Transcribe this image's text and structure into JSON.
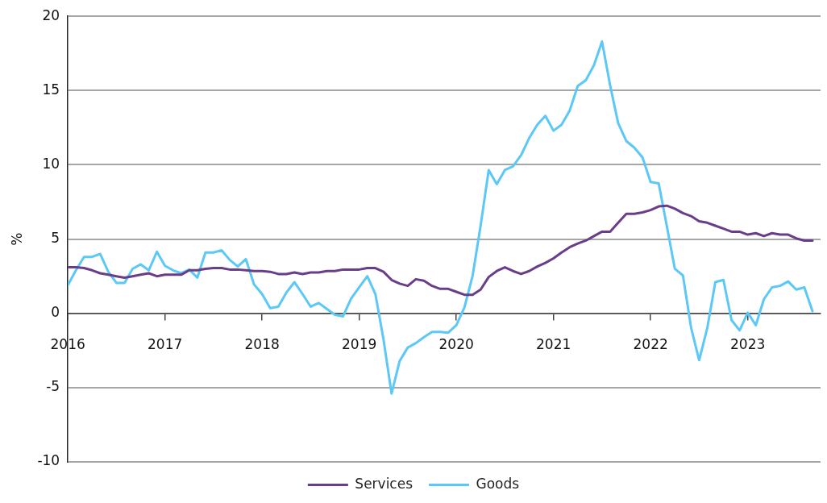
{
  "chart_data": {
    "type": "line",
    "ylabel": "%",
    "x": [
      "2016-01",
      "2016-02",
      "2016-03",
      "2016-04",
      "2016-05",
      "2016-06",
      "2016-07",
      "2016-08",
      "2016-09",
      "2016-10",
      "2016-11",
      "2016-12",
      "2017-01",
      "2017-02",
      "2017-03",
      "2017-04",
      "2017-05",
      "2017-06",
      "2017-07",
      "2017-08",
      "2017-09",
      "2017-10",
      "2017-11",
      "2017-12",
      "2018-01",
      "2018-02",
      "2018-03",
      "2018-04",
      "2018-05",
      "2018-06",
      "2018-07",
      "2018-08",
      "2018-09",
      "2018-10",
      "2018-11",
      "2018-12",
      "2019-01",
      "2019-02",
      "2019-03",
      "2019-04",
      "2019-05",
      "2019-06",
      "2019-07",
      "2019-08",
      "2019-09",
      "2019-10",
      "2019-11",
      "2019-12",
      "2020-01",
      "2020-02",
      "2020-03",
      "2020-04",
      "2020-05",
      "2020-06",
      "2020-07",
      "2020-08",
      "2020-09",
      "2020-10",
      "2020-11",
      "2020-12",
      "2021-01",
      "2021-02",
      "2021-03",
      "2021-04",
      "2021-05",
      "2021-06",
      "2021-07",
      "2021-08",
      "2021-09",
      "2021-10",
      "2021-11",
      "2021-12",
      "2022-01",
      "2022-02",
      "2022-03",
      "2022-04",
      "2022-05",
      "2022-06",
      "2022-07",
      "2022-08",
      "2022-09",
      "2022-10",
      "2022-11",
      "2022-12",
      "2023-01",
      "2023-02",
      "2023-03",
      "2023-04",
      "2023-05",
      "2023-06",
      "2023-07",
      "2023-08",
      "2023-09"
    ],
    "series": [
      {
        "name": "Services",
        "color": "#6a3d8a",
        "values": [
          3.1,
          3.1,
          3.05,
          2.9,
          2.7,
          2.6,
          2.5,
          2.4,
          2.5,
          2.6,
          2.7,
          2.5,
          2.6,
          2.6,
          2.6,
          2.9,
          2.9,
          3.0,
          3.05,
          3.05,
          2.95,
          2.95,
          2.9,
          2.85,
          2.85,
          2.8,
          2.65,
          2.65,
          2.75,
          2.65,
          2.75,
          2.75,
          2.85,
          2.85,
          2.95,
          2.95,
          2.95,
          3.05,
          3.05,
          2.8,
          2.25,
          2.0,
          1.85,
          2.3,
          2.2,
          1.85,
          1.65,
          1.65,
          1.45,
          1.25,
          1.25,
          1.6,
          2.45,
          2.85,
          3.1,
          2.85,
          2.65,
          2.85,
          3.15,
          3.4,
          3.7,
          4.1,
          4.45,
          4.7,
          4.9,
          5.2,
          5.5,
          5.5,
          6.1,
          6.7,
          6.7,
          6.8,
          6.95,
          7.2,
          7.25,
          7.05,
          6.75,
          6.55,
          6.2,
          6.1,
          5.9,
          5.7,
          5.5,
          5.5,
          5.3,
          5.4,
          5.2,
          5.4,
          5.3,
          5.3,
          5.05,
          4.9,
          4.9
        ]
      },
      {
        "name": "Goods",
        "color": "#5bc8f8",
        "values": [
          1.9,
          2.9,
          3.8,
          3.8,
          4.0,
          2.8,
          2.05,
          2.05,
          3.0,
          3.3,
          2.9,
          4.15,
          3.2,
          2.9,
          2.7,
          2.95,
          2.4,
          4.1,
          4.1,
          4.25,
          3.6,
          3.15,
          3.65,
          1.95,
          1.3,
          0.35,
          0.45,
          1.4,
          2.1,
          1.3,
          0.45,
          0.7,
          0.3,
          -0.1,
          -0.2,
          1.0,
          1.75,
          2.5,
          1.3,
          -1.75,
          -5.4,
          -3.2,
          -2.3,
          -2.0,
          -1.6,
          -1.25,
          -1.25,
          -1.3,
          -0.8,
          0.4,
          2.5,
          5.9,
          9.65,
          8.7,
          9.65,
          9.9,
          10.65,
          11.8,
          12.7,
          13.3,
          12.3,
          12.7,
          13.65,
          15.3,
          15.7,
          16.7,
          18.3,
          15.35,
          12.8,
          11.6,
          11.15,
          10.5,
          8.85,
          8.75,
          5.9,
          3.0,
          2.55,
          -0.95,
          -3.15,
          -1.0,
          2.1,
          2.25,
          -0.45,
          -1.15,
          0.05,
          -0.8,
          0.95,
          1.75,
          1.85,
          2.15,
          1.6,
          1.75,
          0.15
        ]
      }
    ],
    "xlim": [
      "2016-01",
      "2023-10"
    ],
    "xticks": [
      "2016",
      "2017",
      "2018",
      "2019",
      "2020",
      "2021",
      "2022",
      "2023"
    ],
    "ylim": [
      -10,
      20
    ],
    "yticks": [
      -10,
      -5,
      0,
      5,
      10,
      15,
      20
    ],
    "grid": "y",
    "legend": "bottom",
    "marker": "none",
    "line_style": "solid"
  }
}
